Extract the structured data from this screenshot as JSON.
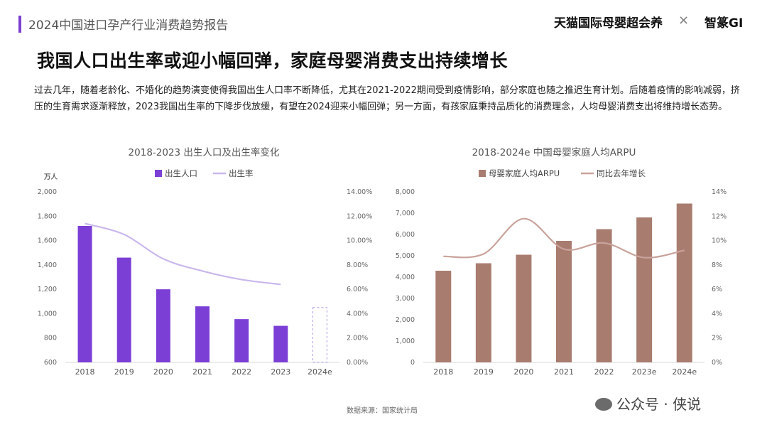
{
  "header": {
    "report_title": "2024中国进口孕产行业消费趋势报告",
    "brand_tmall": "天猫国际母婴超会养",
    "brand_separator": "×",
    "brand_partner": "智篆GI"
  },
  "headline": "我国人口出生率或迎小幅回弹，家庭母婴消费支出持续增长",
  "body_text": "过去几年，随着老龄化、不婚化的趋势演变使得我国出生人口率不断降低，尤其在2021-2022期间受到疫情影响，部分家庭也随之推迟生育计划。后随着疫情的影响减弱，挤压的生育需求逐渐释放，2023我国出生率的下降步伐放缓，有望在2024迎来小幅回弹；另一方面，有孩家庭秉持品质化的消费理念，人均母婴消费支出将维持增长态势。",
  "source": "数据来源：国家统计局",
  "watermark": "公众号 · 侠说",
  "colors": {
    "accent": "#7b3fd0",
    "bar_left": "#7c3fd6",
    "line_left": "#c9b8ec",
    "bar_right": "#a87c6f",
    "line_right": "#c9a39b"
  },
  "chart_data": [
    {
      "type": "bar",
      "title": "2018-2023 出生人口及出生率变化",
      "unit_label": "万人",
      "categories": [
        "2018",
        "2019",
        "2020",
        "2021",
        "2022",
        "2023",
        "2024e"
      ],
      "series": [
        {
          "name": "出生人口",
          "type": "bar",
          "axis": "left",
          "values": [
            1720,
            1460,
            1200,
            1060,
            955,
            900,
            null
          ],
          "forecast_dashed": 1050
        },
        {
          "name": "出生率",
          "type": "line",
          "axis": "right",
          "values": [
            11.4,
            10.5,
            8.5,
            7.5,
            6.8,
            6.4,
            null
          ]
        }
      ],
      "ylim_left": [
        600,
        2000
      ],
      "yticks_left": [
        "600",
        "800",
        "1,000",
        "1,200",
        "1,400",
        "1,600",
        "1,800",
        "2,000"
      ],
      "ylim_right": [
        0,
        14
      ],
      "yticks_right": [
        "0.00%",
        "2.00%",
        "4.00%",
        "6.00%",
        "8.00%",
        "10.00%",
        "12.00%",
        "14.00%"
      ],
      "legend_position": "top"
    },
    {
      "type": "bar",
      "title": "2018-2024e 中国母婴家庭人均ARPU",
      "categories": [
        "2018",
        "2019",
        "2020",
        "2021",
        "2022",
        "2023e",
        "2024e"
      ],
      "series": [
        {
          "name": "母婴家庭人均ARPU",
          "type": "bar",
          "axis": "left",
          "values": [
            4300,
            4650,
            5050,
            5700,
            6250,
            6800,
            7450
          ]
        },
        {
          "name": "同比去年增长",
          "type": "line",
          "axis": "right",
          "values": [
            8.7,
            8.9,
            11.8,
            9.3,
            9.8,
            8.6,
            9.2
          ]
        }
      ],
      "ylim_left": [
        0,
        8000
      ],
      "yticks_left": [
        "0",
        "1,000",
        "2,000",
        "3,000",
        "4,000",
        "5,000",
        "6,000",
        "7,000",
        "8,000"
      ],
      "ylim_right": [
        0,
        14
      ],
      "yticks_right": [
        "0%",
        "2%",
        "4%",
        "6%",
        "8%",
        "10%",
        "12%",
        "14%"
      ],
      "legend_position": "top"
    }
  ]
}
